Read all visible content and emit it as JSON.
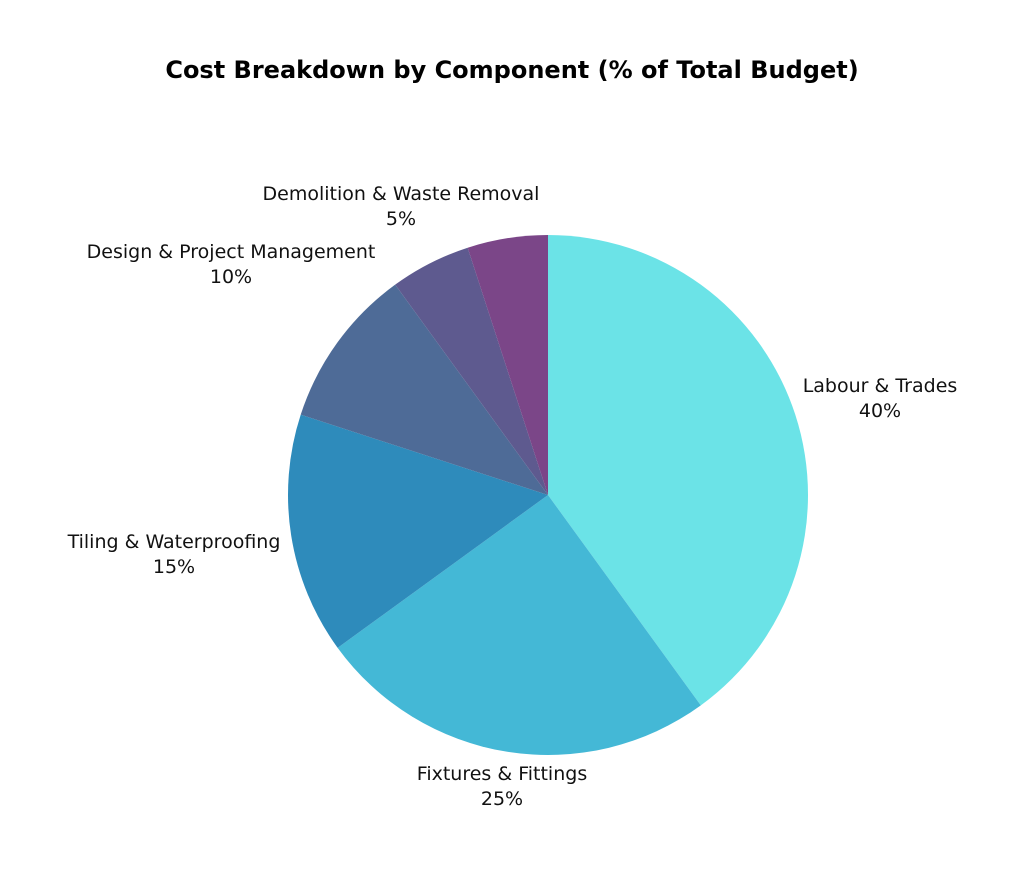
{
  "chart_data": {
    "type": "pie",
    "title": "Cost Breakdown by Component (% of Total Budget)",
    "start_angle": "12 o'clock",
    "direction": "clockwise",
    "slices": [
      {
        "label": "Labour & Trades",
        "value": 40,
        "value_label": "40%",
        "color": "#6be3e7"
      },
      {
        "label": "Fixtures & Fittings",
        "value": 25,
        "value_label": "25%",
        "color": "#44b8d6"
      },
      {
        "label": "Tiling & Waterproofing",
        "value": 15,
        "value_label": "15%",
        "color": "#2e8bbb"
      },
      {
        "label": "Design & Project Management",
        "value": 10,
        "value_label": "10%",
        "color": "#4e6b97"
      },
      {
        "label": "Demolition & Waste Removal",
        "value": 5,
        "value_label": "5%",
        "color": "#5e5a8f"
      },
      {
        "label": "",
        "value": 5,
        "value_label": "",
        "color": "#7b4688"
      }
    ]
  }
}
